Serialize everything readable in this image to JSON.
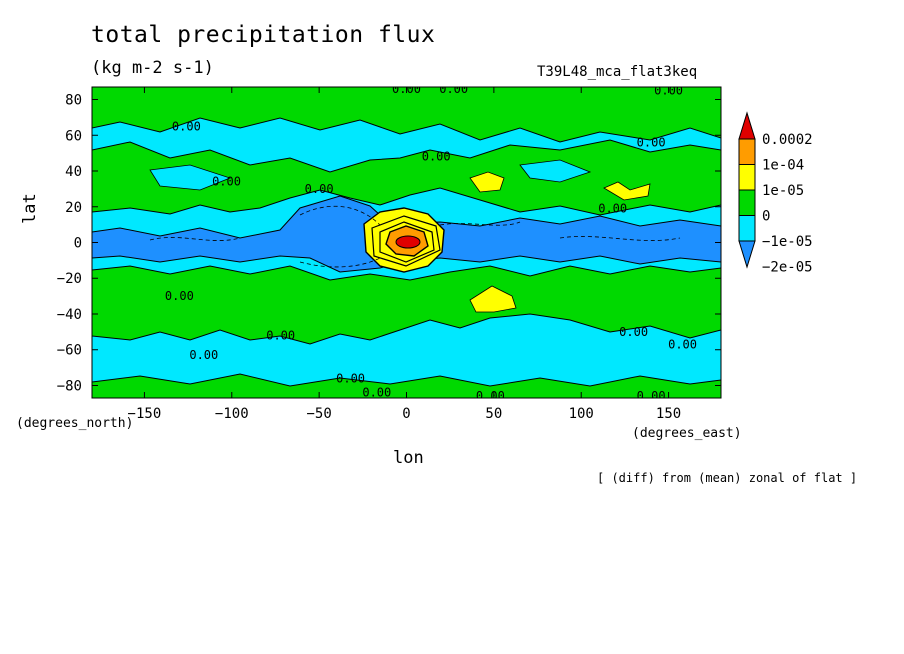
{
  "chart_data": {
    "type": "heatmap",
    "title": "total precipitation flux",
    "units": "(kg m-2 s-1)",
    "run_label": "T39L48_mca_flat3keq",
    "xlabel": "lon",
    "xlabel_units": "(degrees_east)",
    "ylabel": "lat",
    "ylabel_units": "(degrees_north)",
    "note": "[ (diff) from (mean) zonal of flat ]",
    "xlim": [
      -180,
      180
    ],
    "ylim": [
      -87,
      87
    ],
    "x_ticks": [
      -150,
      -100,
      -50,
      0,
      50,
      100,
      150
    ],
    "y_ticks": [
      80,
      60,
      40,
      20,
      0,
      -20,
      -40,
      -60,
      -80
    ],
    "legend": {
      "placement": "right",
      "labels": [
        "0.0002",
        "1e-04",
        "1e-05",
        "0",
        "−1e-05",
        "−2e-05"
      ],
      "colors": [
        "#e00000",
        "#ff9c00",
        "#ffff00",
        "#00d900",
        "#00e8ff",
        "#1e90ff"
      ]
    },
    "contour_labels": [
      {
        "text": "0.00",
        "lon": -126,
        "lat": 65
      },
      {
        "text": "0.00",
        "lon": 0,
        "lat": 86
      },
      {
        "text": "0.00",
        "lon": 27,
        "lat": 86
      },
      {
        "text": "0.00",
        "lon": 150,
        "lat": 85
      },
      {
        "text": "0.00",
        "lon": 17,
        "lat": 48
      },
      {
        "text": "0.00",
        "lon": -103,
        "lat": 34
      },
      {
        "text": "0.00",
        "lon": 140,
        "lat": 56
      },
      {
        "text": "0.00",
        "lon": -50,
        "lat": 30
      },
      {
        "text": "0.00",
        "lon": 118,
        "lat": 19
      },
      {
        "text": "0.00",
        "lon": -130,
        "lat": -30
      },
      {
        "text": "0.00",
        "lon": -72,
        "lat": -52
      },
      {
        "text": "0.00",
        "lon": -116,
        "lat": -63
      },
      {
        "text": "0.00",
        "lon": 130,
        "lat": -50
      },
      {
        "text": "0.00",
        "lon": 158,
        "lat": -57
      },
      {
        "text": "0.00",
        "lon": -32,
        "lat": -76
      },
      {
        "text": "0.00",
        "lon": -17,
        "lat": -84
      },
      {
        "text": "0.00",
        "lon": 48,
        "lat": -86
      },
      {
        "text": "0.00",
        "lon": 140,
        "lat": -86
      }
    ]
  }
}
